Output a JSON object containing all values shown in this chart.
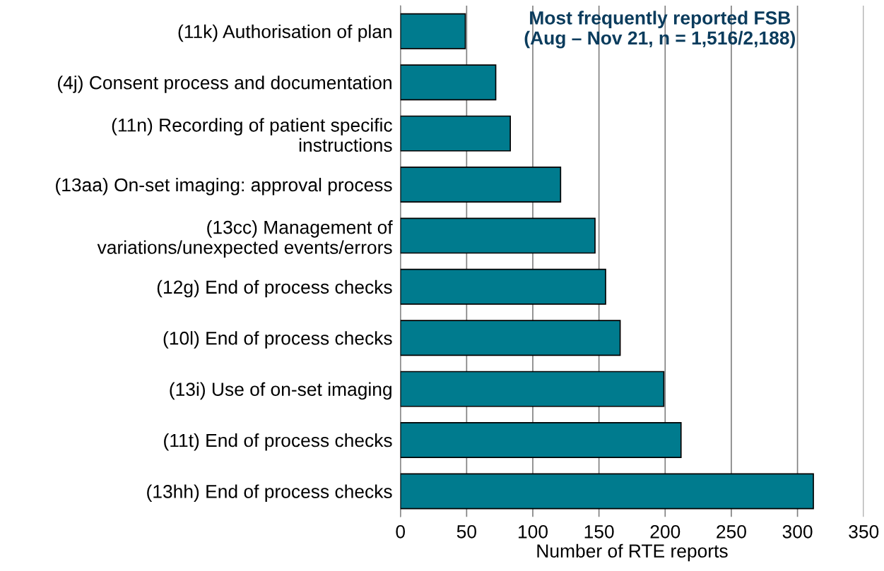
{
  "chart_data": {
    "type": "bar",
    "orientation": "horizontal",
    "title": "Most frequently reported FSB\n(Aug – Nov 21, n = 1,516/2,188)",
    "xlabel": "Number of RTE reports",
    "categories": [
      "(11k) Authorisation of plan",
      "(4j) Consent process and documentation",
      "(11n) Recording of patient specific\ninstructions",
      "(13aa) On-set imaging: approval process",
      "(13cc) Management of\nvariations/unexpected events/errors",
      "(12g) End of process checks",
      "(10l) End of process checks",
      "(13i) Use of on-set imaging",
      "(11t) End of process checks",
      "(13hh) End of process checks"
    ],
    "values": [
      49,
      72,
      83,
      121,
      147,
      155,
      166,
      199,
      212,
      312
    ],
    "color": "#007b8e",
    "xlim": [
      0,
      350
    ],
    "xticks": [
      0,
      50,
      100,
      150,
      200,
      250,
      300,
      350
    ],
    "grid": "x",
    "legend": false
  }
}
